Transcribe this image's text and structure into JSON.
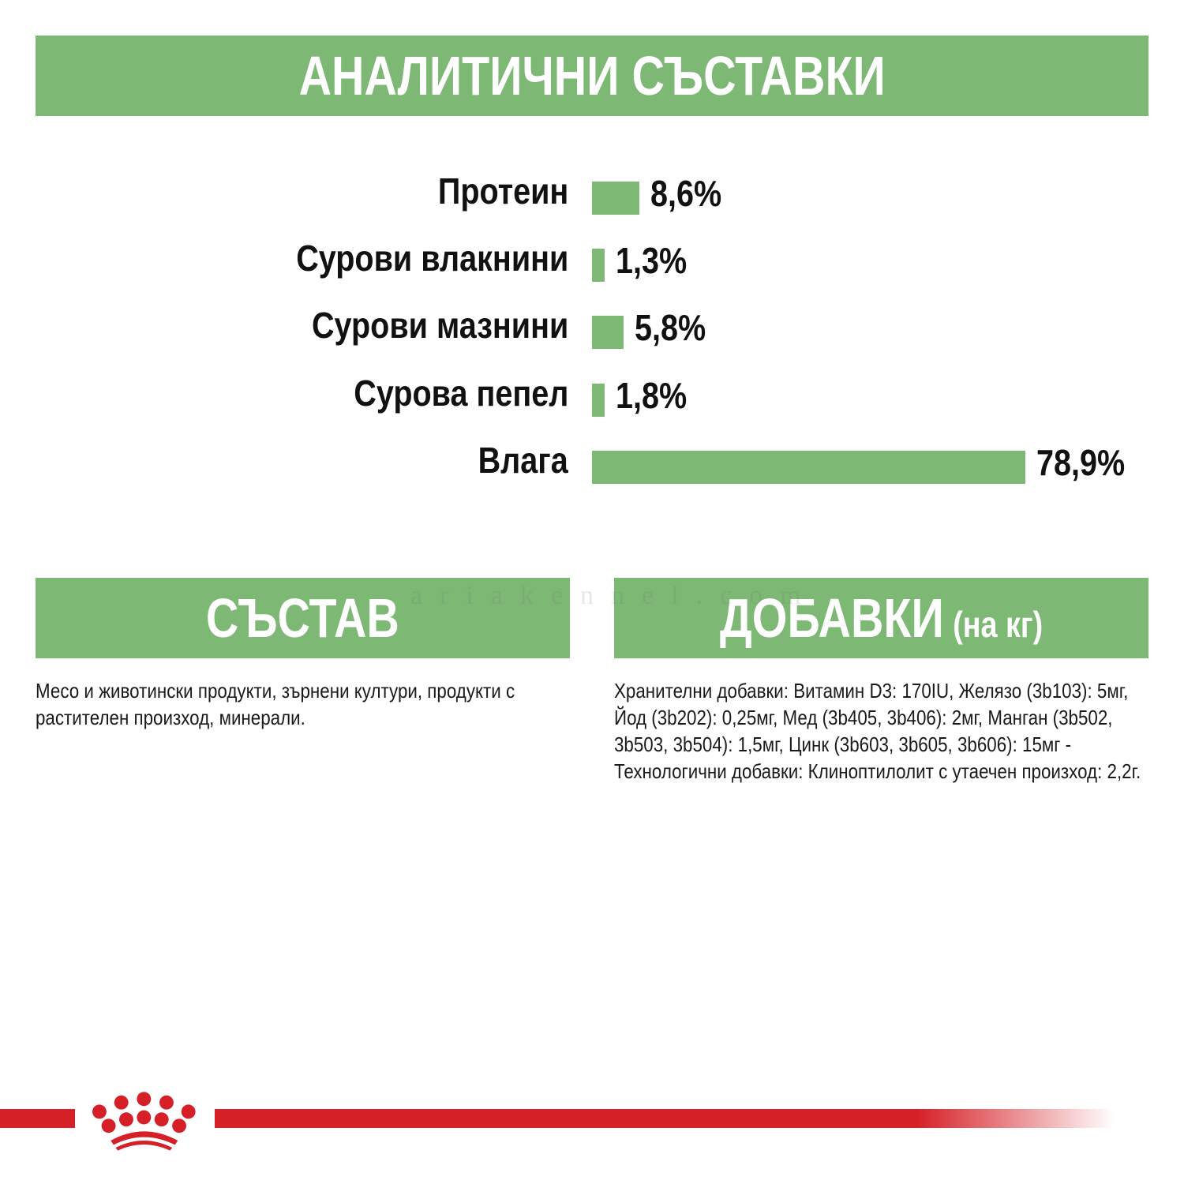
{
  "header": {
    "title": "АНАЛИТИЧНИ СЪСТАВКИ"
  },
  "colors": {
    "accent_green": "#7db874",
    "brand_red": "#d62027",
    "text": "#111111"
  },
  "chart_data": {
    "type": "bar",
    "orientation": "horizontal",
    "title": "АНАЛИТИЧНИ СЪСТАВКИ",
    "categories": [
      "Протеин",
      "Сурови влакнини",
      "Сурови мазнини",
      "Сурова пепел",
      "Влага"
    ],
    "values": [
      8.6,
      1.3,
      5.8,
      1.8,
      78.9
    ],
    "value_labels": [
      "8,6%",
      "1,3%",
      "5,8%",
      "1,8%",
      "78,9%"
    ],
    "unit": "%",
    "xlabel": "",
    "ylabel": "",
    "grid": false,
    "legend": null,
    "bar_color": "#7db874"
  },
  "composition": {
    "title": "СЪСТАВ",
    "text": "Месо и животински продукти, зърнени култури, продукти с растителен произход, минерали."
  },
  "additives": {
    "title": "ДОБАВКИ",
    "title_suffix": "(на кг)",
    "text": "Хранителни добавки: Витамин D3: 170IU, Желязо (3b103): 5мг, Йод (3b202): 0,25мг, Мед (3b405, 3b406): 2мг, Манган (3b502, 3b503, 3b504): 1,5мг, Цинк (3b603, 3b605, 3b606): 15мг - Технологични добавки: Клиноптилолит с утаечен произход: 2,2г."
  },
  "watermark": "ariakennel.com",
  "footer": {
    "logo": "crown-logo-icon"
  }
}
